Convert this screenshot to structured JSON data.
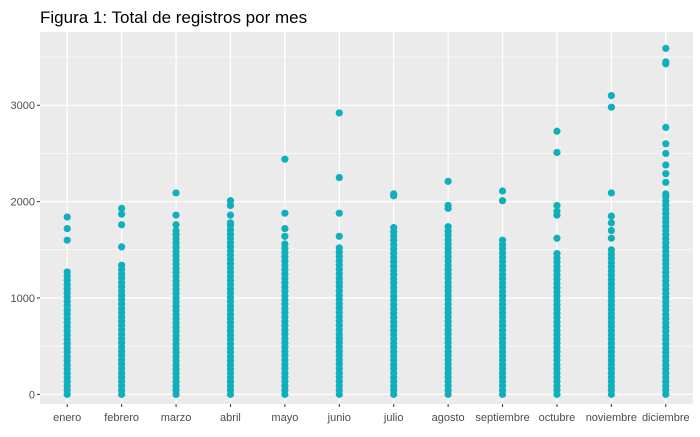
{
  "chart_data": {
    "type": "scatter",
    "title": "Figura 1: Total de registros por mes",
    "xlabel": "",
    "ylabel": "",
    "categories": [
      "enero",
      "febrero",
      "marzo",
      "abril",
      "mayo",
      "junio",
      "julio",
      "agosto",
      "septiembre",
      "octubre",
      "noviembre",
      "diciembre"
    ],
    "ylim": [
      -100,
      3760
    ],
    "yticks": [
      0,
      1000,
      2000,
      3000
    ],
    "grid": true,
    "legend": "none",
    "point_color": "#0FB0BB",
    "panel_color": "#EBEBEB",
    "series": [
      {
        "dense_ranges": [
          [
            0,
            1270
          ],
          [
            0,
            1340
          ],
          [
            0,
            1700
          ],
          [
            0,
            1750
          ],
          [
            0,
            1560
          ],
          [
            0,
            1520
          ],
          [
            0,
            1730
          ],
          [
            0,
            1740
          ],
          [
            0,
            1600
          ],
          [
            0,
            1460
          ],
          [
            0,
            1500
          ],
          [
            0,
            2050
          ]
        ],
        "outliers": [
          [
            1600,
            1720,
            1840
          ],
          [
            1530,
            1760,
            1870,
            1930
          ],
          [
            1760,
            1860,
            2090
          ],
          [
            1780,
            1860,
            1960,
            2010
          ],
          [
            1640,
            1720,
            1880,
            2440
          ],
          [
            1640,
            1880,
            2250,
            2920
          ],
          [
            2060,
            2080
          ],
          [
            1930,
            1960,
            2210
          ],
          [
            2010,
            2110
          ],
          [
            1620,
            1860,
            1900,
            1960,
            2510,
            2730
          ],
          [
            1620,
            1700,
            1780,
            1850,
            2090,
            2980,
            3100
          ],
          [
            2080,
            2200,
            2290,
            2380,
            2500,
            2600,
            2770,
            3430,
            3450,
            3590
          ]
        ]
      }
    ]
  }
}
